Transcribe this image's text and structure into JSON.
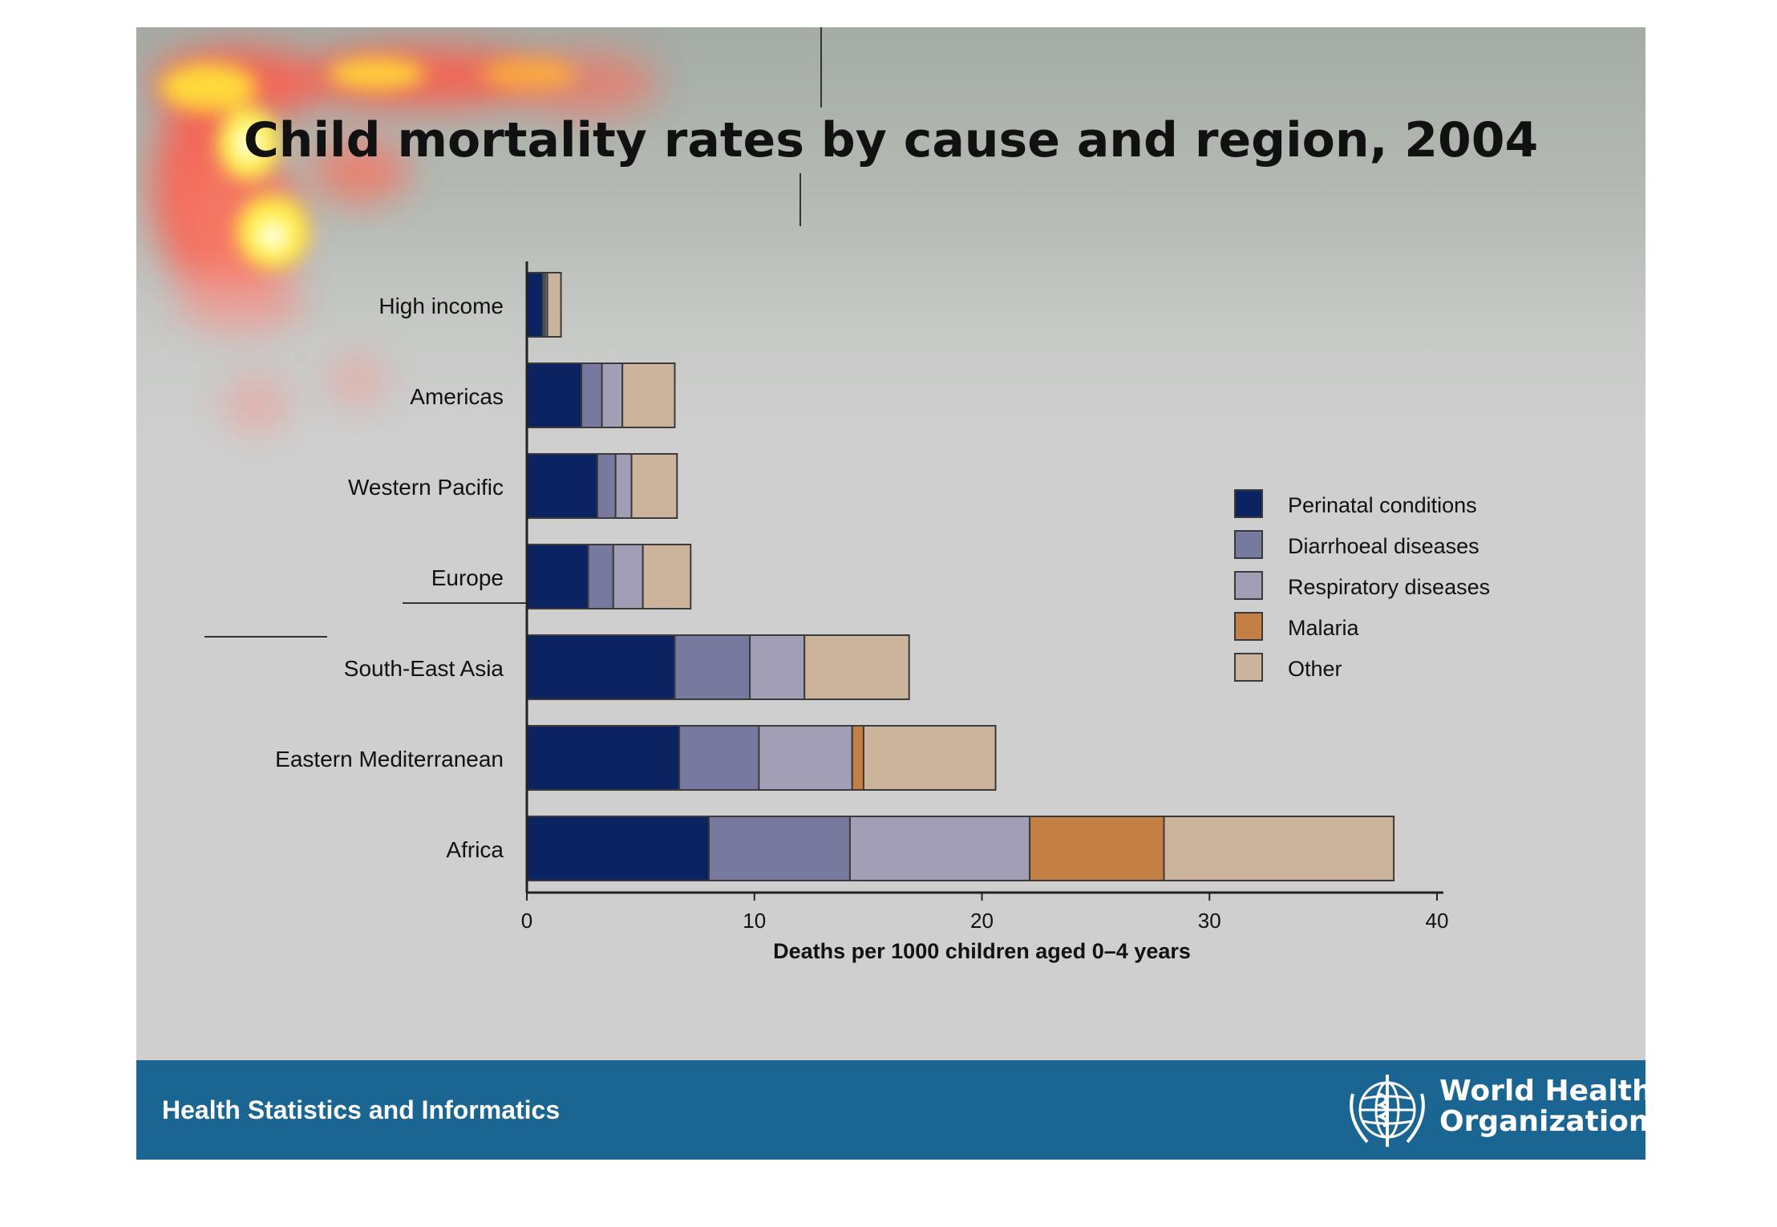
{
  "title": "Child mortality rates by cause and region, 2004",
  "footer": {
    "text": "Health Statistics and Informatics",
    "org_line1": "World Health",
    "org_line2": "Organization",
    "emblem_icon": "who-emblem-icon"
  },
  "colors": {
    "background": "#cfcfcf",
    "footer": "#1b6592",
    "perinatal": "#0b2461",
    "diarrhoeal": "#77799e",
    "respiratory": "#a19eb5",
    "malaria": "#c47f45",
    "other": "#ccb49c"
  },
  "chart_data": {
    "type": "bar",
    "orientation": "horizontal",
    "stacked": true,
    "categories": [
      "High income",
      "Americas",
      "Western Pacific",
      "Europe",
      "South-East Asia",
      "Eastern Mediterranean",
      "Africa"
    ],
    "series": [
      {
        "name": "Perinatal conditions",
        "color": "#0b2461",
        "values": [
          0.7,
          2.4,
          3.1,
          2.7,
          6.5,
          6.7,
          8.0
        ]
      },
      {
        "name": "Diarrhoeal diseases",
        "color": "#77799e",
        "values": [
          0.1,
          0.9,
          0.8,
          1.1,
          3.3,
          3.5,
          6.2
        ]
      },
      {
        "name": "Respiratory diseases",
        "color": "#a19eb5",
        "values": [
          0.1,
          0.9,
          0.7,
          1.3,
          2.4,
          4.1,
          7.9
        ]
      },
      {
        "name": "Malaria",
        "color": "#c47f45",
        "values": [
          0,
          0,
          0,
          0,
          0,
          0.5,
          5.9
        ]
      },
      {
        "name": "Other",
        "color": "#ccb49c",
        "values": [
          0.6,
          2.3,
          2.0,
          2.1,
          4.6,
          5.8,
          10.1
        ]
      }
    ],
    "xlabel": "Deaths per 1000 children aged 0–4 years",
    "xlim": [
      0,
      40
    ],
    "xticks": [
      0,
      10,
      20,
      30,
      40
    ],
    "legend_position": "right",
    "grid": false
  }
}
